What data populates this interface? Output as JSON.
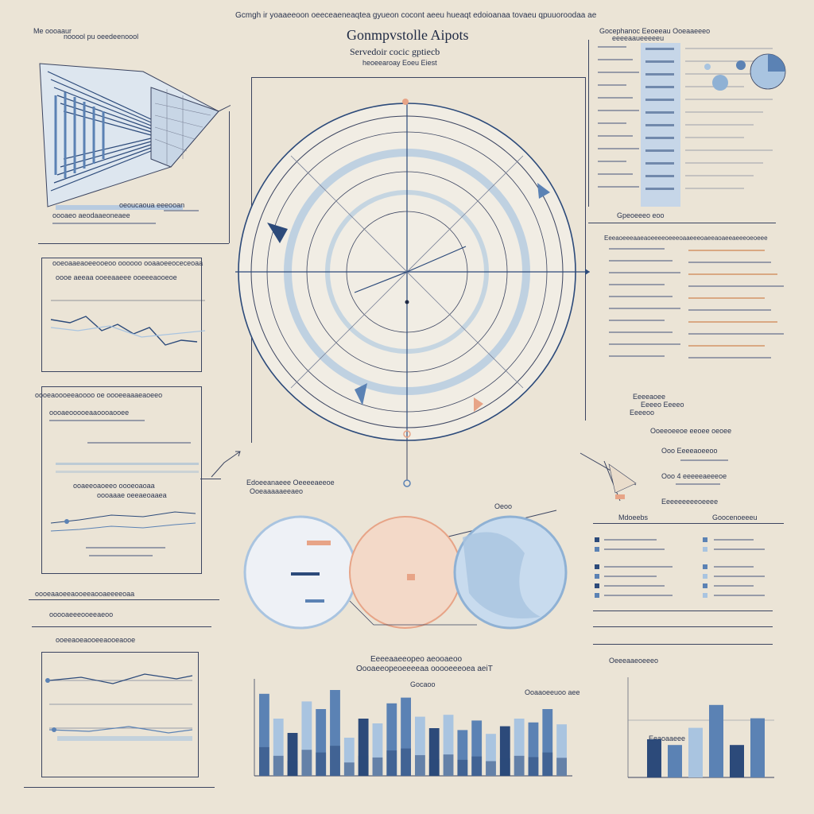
{
  "header": {
    "top_caption": "Gcmgh ir yoaaeeoon oeeceaeneaqtea  gyueon cocont aeeu hueaqt edoioanaa tovaeu qpuuoroodaa ae",
    "left_caption": "Me oooaaur",
    "left_caption2": "nooool pu oeedeenoool",
    "title": "Gonmpvstolle Aipots",
    "subtitle": "Servedoir cocic gptiecb",
    "subtitle2": "heoeearoay Eoeu Eiest"
  },
  "left_panels": {
    "top_caption_a": "oooaeo aeodaaeoneaee",
    "top_caption_b": "oeoucaoua  eeeooan",
    "p1_head": "ooeoaaeaoeeooeoo oooooo ooaaoeeoceceoaa",
    "p1_sub": "oooe aeeaa ooeeaaeee ooeeeaooeoe",
    "p2_head": "oooeaoooeeaoooo oe oooeeaaaeaoeeo",
    "p2_sub": "oooaeooooeaaoooaooee",
    "p2_note1": "ooaeeoaoeeo oooeoaoaa",
    "p2_note2": "oooaaae oeeaeoaaea",
    "mid_caption": "oooeaaoeeaooeeaooaeeeeoaa",
    "mid_caption2": "ooooaeeeooeeaeoo",
    "p3_head": "ooeeaoeaooeeaooeaooe"
  },
  "center": {
    "diagram_label": "Edoeeanaeee Oeeeeaeeoe",
    "diagram_label2": "Ooeaaaaaeeaeo"
  },
  "venn": {
    "label": "Oeoo"
  },
  "bar_section": {
    "title": "Eeeeaaeeopeo aeooaeoo",
    "subtitle": "Oooaeeopeoeeeeaa ooooeeeoea aeiT",
    "axis_label": "Gocaoo",
    "side_label": "Ooaaoeeuoo aee"
  },
  "right": {
    "header": "Gocephanoc Eeoeeau Ooeaaeeeo",
    "header2": "eeeeaaueeeeeu",
    "section_label": "Gpeoeeeo eoo",
    "dense_head": "Eeeaoeeeaaeaoeeeeoeeeoaaeeeoaeeaoaeeaeeeoeoeee",
    "cluster_1": "Eeeeaoee",
    "cluster_2": "Eeeeo Eeeeo",
    "cluster_3": "Eeeeoo",
    "cluster_4": "Ooeeoeeoe eeoee oeoee",
    "legend_1": "Ooo Eeeeaoeeoo",
    "legend_2": "Ooo 4 eeeeeaeeeoe",
    "legend_3": "Eeeeeeeeeoeeee",
    "table_head_l": "Mdoeebs",
    "table_head_r": "Goocenoeeeu",
    "bottom_label": "Oeeeaaeoeeeo",
    "mini_bar_label": "Eeaoaaeee"
  },
  "colors": {
    "background": "#ebe4d6",
    "navy": "#2c4a7a",
    "mid_blue": "#5b82b4",
    "light_blue": "#a9c4e0",
    "peach": "#e7a487",
    "ink": "#1f2a44"
  },
  "chart_data": [
    {
      "type": "bar",
      "title": "",
      "values": [
        86,
        60,
        45,
        78,
        70,
        90,
        40,
        60,
        55,
        76,
        82,
        62,
        50,
        64,
        48,
        58,
        44,
        52,
        60,
        56,
        70,
        54
      ],
      "ylim": [
        0,
        100
      ]
    },
    {
      "type": "bar",
      "title": "",
      "values": [
        40,
        34,
        52,
        76,
        34,
        62
      ],
      "ylim": [
        0,
        100
      ]
    }
  ]
}
